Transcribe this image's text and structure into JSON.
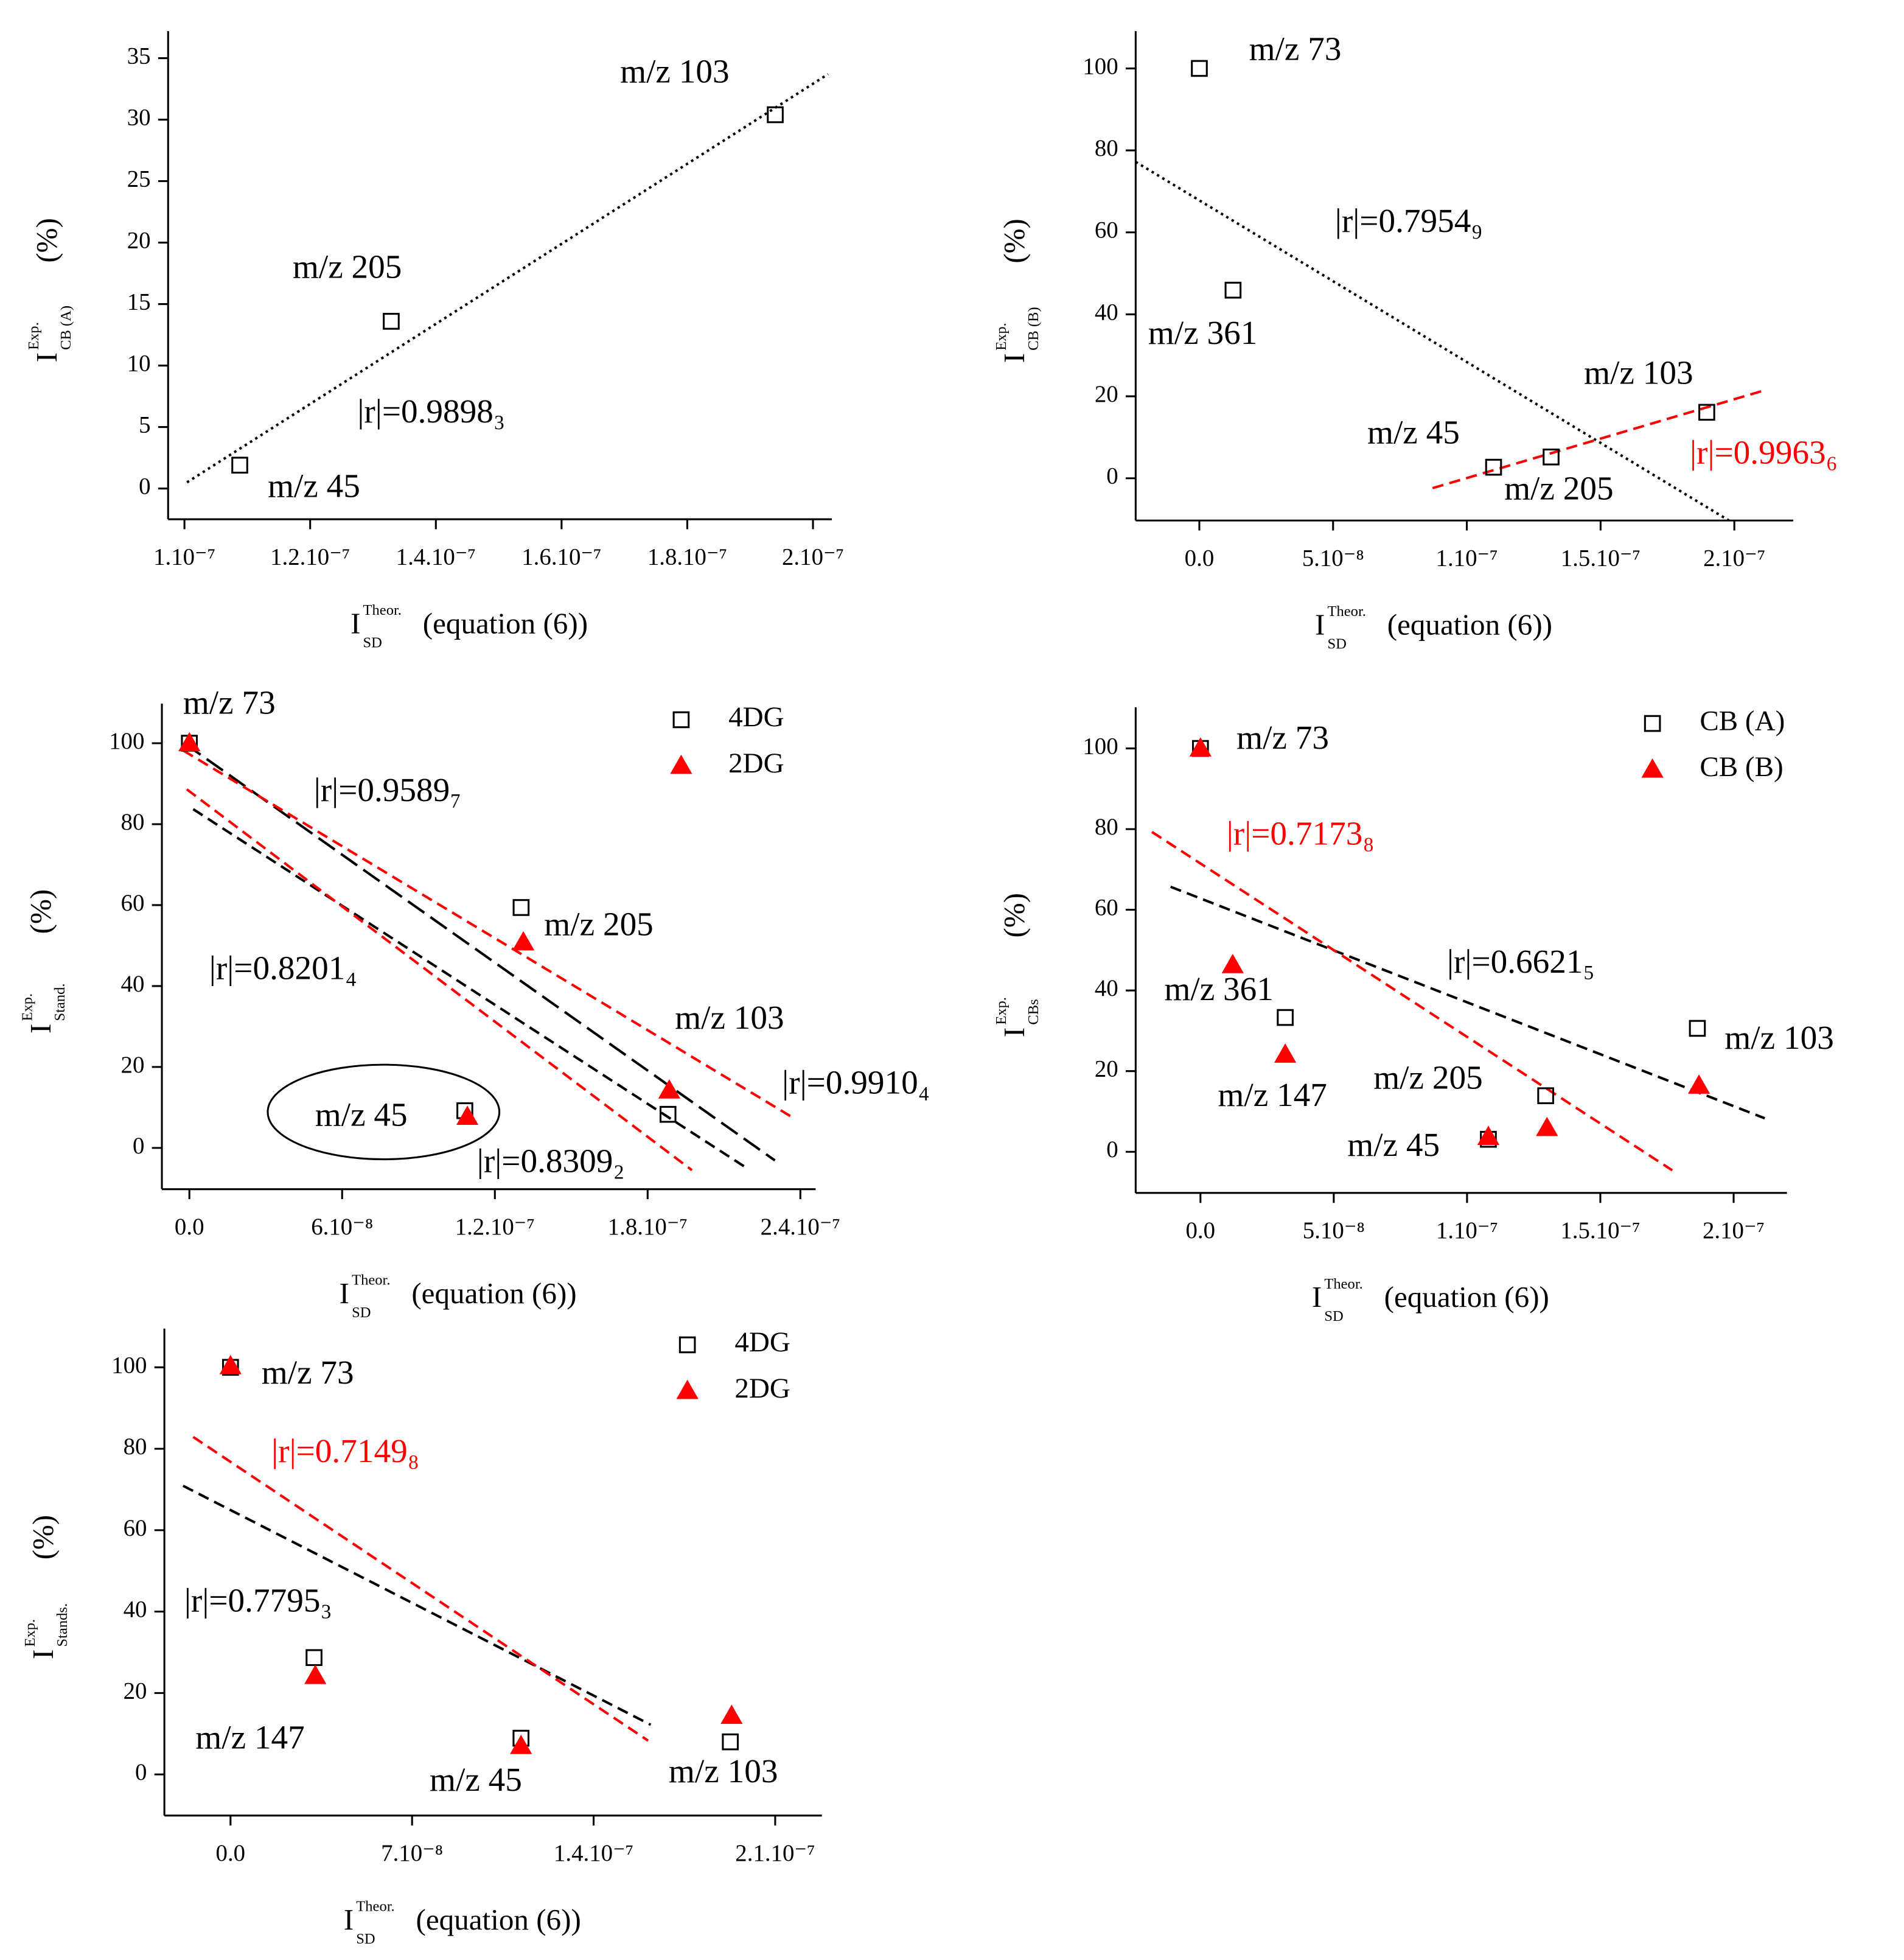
{
  "chart_data": [
    {
      "type": "scatter",
      "x_label": {
        "symbol": "I",
        "sup": "Theor.",
        "sub": "SD",
        "text": "(equation (6))"
      },
      "y_label": {
        "symbol": "I",
        "sup": "Exp.",
        "sub": "CB (A)",
        "unit": "(%)"
      },
      "xlim": [
        9.74e-08,
        2.03e-07
      ],
      "ylim": [
        -2.5,
        37.2
      ],
      "xticks": [
        {
          "value": 1e-07,
          "label": "1.10⁻⁷"
        },
        {
          "value": 1.2e-07,
          "label": "1.2.10⁻⁷"
        },
        {
          "value": 1.4e-07,
          "label": "1.4.10⁻⁷"
        },
        {
          "value": 1.6e-07,
          "label": "1.6.10⁻⁷"
        },
        {
          "value": 1.8e-07,
          "label": "1.8.10⁻⁷"
        },
        {
          "value": 2e-07,
          "label": "2.10⁻⁷"
        }
      ],
      "yticks": [
        0,
        5,
        10,
        15,
        20,
        25,
        30,
        35
      ],
      "series": [
        {
          "marker": "square",
          "color": "#000000",
          "x": [
            1.088e-07,
            1.329e-07,
            1.94e-07
          ],
          "values": [
            1.9,
            13.6,
            30.4
          ]
        }
      ],
      "fit_lines": [
        {
          "color": "#000000",
          "style": "dotted",
          "x": [
            1.004e-07,
            2.024e-07
          ],
          "values": [
            0.5,
            33.7
          ]
        }
      ],
      "annotations": [
        {
          "text": "m/z  103",
          "color": "#000000"
        },
        {
          "text": "m/z  205",
          "color": "#000000"
        },
        {
          "text": "|r|=0.9898₃",
          "color": "#000000"
        },
        {
          "text": "m/z  45",
          "color": "#000000"
        }
      ]
    },
    {
      "type": "scatter",
      "x_label": {
        "symbol": "I",
        "sup": "Theor.",
        "sub": "SD",
        "text": "(equation (6))"
      },
      "y_label": {
        "symbol": "I",
        "sup": "Exp.",
        "sub": "CB (B)",
        "unit": "(%)"
      },
      "xlim": [
        -2.38e-08,
        2.22e-07
      ],
      "ylim": [
        -10.3,
        109.1
      ],
      "xticks": [
        {
          "value": 0,
          "label": "0.0"
        },
        {
          "value": 5e-08,
          "label": "5.10⁻⁸"
        },
        {
          "value": 1e-07,
          "label": "1.10⁻⁷"
        },
        {
          "value": 1.5e-07,
          "label": "1.5.10⁻⁷"
        },
        {
          "value": 2e-07,
          "label": "2.10⁻⁷"
        }
      ],
      "yticks": [
        0,
        20,
        40,
        60,
        80,
        100
      ],
      "series": [
        {
          "marker": "square",
          "color": "#000000",
          "x": [
            0,
            1.26e-08,
            1.1e-07,
            1.315e-07,
            1.897e-07
          ],
          "values": [
            100,
            45.9,
            2.7,
            5.2,
            16.1
          ]
        }
      ],
      "fit_lines": [
        {
          "color": "#000000",
          "style": "dotted",
          "x": [
            -2.38e-08,
            1.98e-07
          ],
          "values": [
            77.2,
            -10.3
          ]
        },
        {
          "color": "#ff0000",
          "style": "dashed",
          "x": [
            8.72e-08,
            2.12e-07
          ],
          "values": [
            -2.4,
            21.6
          ]
        }
      ],
      "annotations": [
        {
          "text": "m/z  73",
          "color": "#000000"
        },
        {
          "text": "|r|=0.7954₉",
          "color": "#000000"
        },
        {
          "text": "m/z  361",
          "color": "#000000"
        },
        {
          "text": "m/z  103",
          "color": "#000000"
        },
        {
          "text": "m/z  45",
          "color": "#000000"
        },
        {
          "text": "m/z  205",
          "color": "#000000"
        },
        {
          "text": "|r|=0.9963₆",
          "color": "#ff0000"
        }
      ]
    },
    {
      "type": "scatter",
      "x_label": {
        "symbol": "I",
        "sup": "Theor.",
        "sub": "SD",
        "text": "(equation (6))"
      },
      "y_label": {
        "symbol": "I",
        "sup": "Exp.",
        "sub": "Stand.",
        "unit": "(%)"
      },
      "xlim": [
        -1.08e-08,
        2.46e-07
      ],
      "ylim": [
        -10.2,
        109.8
      ],
      "xticks": [
        {
          "value": 0,
          "label": "0.0"
        },
        {
          "value": 6e-08,
          "label": "6.10⁻⁸"
        },
        {
          "value": 1.2e-07,
          "label": "1.2.10⁻⁷"
        },
        {
          "value": 1.8e-07,
          "label": "1.8.10⁻⁷"
        },
        {
          "value": 2.4e-07,
          "label": "2.4.10⁻⁷"
        }
      ],
      "yticks": [
        0,
        20,
        40,
        60,
        80,
        100
      ],
      "legend": "upper right",
      "series": [
        {
          "name": "4DG",
          "marker": "square",
          "color": "#000000",
          "x": [
            0,
            1.303e-07,
            1.082e-07,
            1.88e-07
          ],
          "values": [
            100,
            59.4,
            9.2,
            8.3
          ]
        },
        {
          "name": "2DG",
          "marker": "triangle",
          "color": "#ff0000",
          "x": [
            0,
            1.312e-07,
            1.092e-07,
            1.885e-07
          ],
          "values": [
            100,
            50.8,
            7.7,
            14.2
          ]
        }
      ],
      "fit_lines": [
        {
          "color": "#000000",
          "style": "long-dashed",
          "x": [
            -2e-09,
            2.3e-07
          ],
          "values": [
            100,
            -3.1
          ]
        },
        {
          "color": "#000000",
          "style": "dashed",
          "x": [
            1.5e-09,
            2.18e-07
          ],
          "values": [
            83.7,
            -4.6
          ]
        },
        {
          "color": "#ff0000",
          "style": "dashed",
          "x": [
            -2.4e-09,
            2.365e-07
          ],
          "values": [
            98.2,
            7.7
          ]
        },
        {
          "color": "#ff0000",
          "style": "dashed",
          "x": [
            -1e-09,
            1.974e-07
          ],
          "values": [
            88.6,
            -5.5
          ]
        }
      ],
      "annotations": [
        {
          "text": "m/z  73",
          "color": "#000000"
        },
        {
          "text": "|r|=0.9589₇",
          "color": "#000000"
        },
        {
          "text": "m/z  205",
          "color": "#000000"
        },
        {
          "text": "|r|=0.8201₄",
          "color": "#000000"
        },
        {
          "text": "m/z  103",
          "color": "#000000"
        },
        {
          "text": "|r|=0.9910₄",
          "color": "#000000"
        },
        {
          "text": "m/z  45",
          "color": "#000000"
        },
        {
          "text": "|r|=0.8309₂",
          "color": "#000000"
        }
      ]
    },
    {
      "type": "scatter",
      "x_label": {
        "symbol": "I",
        "sup": "Theor.",
        "sub": "SD",
        "text": "(equation (6))"
      },
      "y_label": {
        "symbol": "I",
        "sup": "Exp.",
        "sub": "CBs",
        "unit": "(%)"
      },
      "xlim": [
        -2.43e-08,
        2.2e-07
      ],
      "ylim": [
        -10.2,
        110.2
      ],
      "xticks": [
        {
          "value": 0,
          "label": "0.0"
        },
        {
          "value": 5e-08,
          "label": "5.10⁻⁸"
        },
        {
          "value": 1e-07,
          "label": "1.10⁻⁷"
        },
        {
          "value": 1.5e-07,
          "label": "1.5.10⁻⁷"
        },
        {
          "value": 2e-07,
          "label": "2.10⁻⁷"
        }
      ],
      "yticks": [
        0,
        20,
        40,
        60,
        80,
        100
      ],
      "legend": "upper right",
      "series": [
        {
          "name": "CB (A)",
          "marker": "square",
          "color": "#000000",
          "x": [
            0,
            3.18e-08,
            1.08e-07,
            1.295e-07,
            1.864e-07
          ],
          "values": [
            100,
            33.3,
            3.1,
            13.9,
            30.6
          ]
        },
        {
          "name": "CB (B)",
          "marker": "triangle",
          "color": "#ff0000",
          "x": [
            0,
            1.21e-08,
            3.18e-08,
            1.08e-07,
            1.3e-07,
            1.87e-07
          ],
          "values": [
            100,
            46.3,
            24.1,
            3.7,
            5.9,
            16.4
          ]
        }
      ],
      "fit_lines": [
        {
          "color": "#000000",
          "style": "dashed",
          "x": [
            -1.12e-08,
            2.117e-07
          ],
          "values": [
            65.7,
            8.3
          ]
        },
        {
          "color": "#ff0000",
          "style": "dashed",
          "x": [
            -1.82e-08,
            1.77e-07
          ],
          "values": [
            79.3,
            -4.6
          ]
        }
      ],
      "annotations": [
        {
          "text": "m/z  73",
          "color": "#000000"
        },
        {
          "text": "|r|=0.7173₈",
          "color": "#ff0000"
        },
        {
          "text": "|r|=0.6621₅",
          "color": "#000000"
        },
        {
          "text": "m/z  361",
          "color": "#000000"
        },
        {
          "text": "m/z  103",
          "color": "#000000"
        },
        {
          "text": "m/z  205",
          "color": "#000000"
        },
        {
          "text": "m/z  147",
          "color": "#000000"
        },
        {
          "text": "m/z  45",
          "color": "#000000"
        }
      ]
    },
    {
      "type": "scatter",
      "x_label": {
        "symbol": "I",
        "sup": "Theor.",
        "sub": "SD",
        "text": "(equation (6))"
      },
      "y_label": {
        "symbol": "I",
        "sup": "Exp.",
        "sub": "Stands.",
        "unit": "(%)"
      },
      "xlim": [
        -2.55e-08,
        2.28e-07
      ],
      "ylim": [
        -10.1,
        109.5
      ],
      "xticks": [
        {
          "value": 0,
          "label": "0.0"
        },
        {
          "value": 7e-08,
          "label": "7.10⁻⁸"
        },
        {
          "value": 1.4e-07,
          "label": "1.4.10⁻⁷"
        },
        {
          "value": 2.1e-07,
          "label": "2.1.10⁻⁷"
        }
      ],
      "yticks": [
        0,
        20,
        40,
        60,
        80,
        100
      ],
      "legend": "upper right",
      "series": [
        {
          "name": "4DG",
          "marker": "square",
          "color": "#000000",
          "x": [
            0,
            3.22e-08,
            1.12e-07,
            1.927e-07
          ],
          "values": [
            100,
            28.7,
            8.9,
            8.0
          ]
        },
        {
          "name": "2DG",
          "marker": "triangle",
          "color": "#ff0000",
          "x": [
            0,
            3.27e-08,
            1.12e-07,
            1.932e-07
          ],
          "values": [
            100.3,
            24.2,
            7.0,
            14.4
          ]
        }
      ],
      "fit_lines": [
        {
          "color": "#000000",
          "style": "dashed",
          "x": [
            -1.83e-08,
            1.62e-07
          ],
          "values": [
            70.9,
            12.2
          ]
        },
        {
          "color": "#ff0000",
          "style": "dashed",
          "x": [
            -1.44e-08,
            1.61e-07
          ],
          "values": [
            82.9,
            8.3
          ]
        }
      ],
      "annotations": [
        {
          "text": "m/z  73",
          "color": "#000000"
        },
        {
          "text": "|r|=0.7149₈",
          "color": "#ff0000"
        },
        {
          "text": "|r|=0.7795₃",
          "color": "#000000"
        },
        {
          "text": "m/z  147",
          "color": "#000000"
        },
        {
          "text": "m/z  45",
          "color": "#000000"
        },
        {
          "text": "m/z  103",
          "color": "#000000"
        }
      ]
    }
  ]
}
